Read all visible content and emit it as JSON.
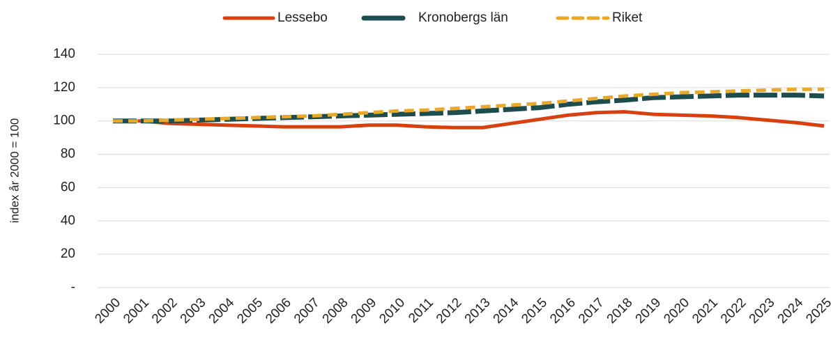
{
  "chart_data": {
    "type": "line",
    "y_label": "index år 2000 = 100",
    "categories": [
      "2000",
      "2001",
      "2002",
      "2003",
      "2004",
      "2005",
      "2006",
      "2007",
      "2008",
      "2009",
      "2010",
      "2011",
      "2012",
      "2013",
      "2014",
      "2015",
      "2016",
      "2017",
      "2018",
      "2019",
      "2020",
      "2021",
      "2022",
      "2023",
      "2024",
      "2025"
    ],
    "series": [
      {
        "name": "Lessebo",
        "color": "#d9400f",
        "dash": "",
        "width": 5,
        "values": [
          100,
          100,
          98.5,
          98,
          97.5,
          97,
          96.5,
          96.5,
          96.5,
          97.5,
          97.5,
          96.5,
          96,
          96,
          98.5,
          101,
          103.5,
          105,
          105.5,
          104,
          103.5,
          103,
          102,
          100.5,
          99,
          97
        ]
      },
      {
        "name": "Kronobergs län",
        "color": "#1e4d4f",
        "dash": "34,6",
        "width": 7,
        "values": [
          100,
          100,
          100,
          100.5,
          101,
          101.5,
          102,
          102.5,
          103,
          103.5,
          104,
          104.5,
          105,
          106,
          107,
          108,
          110,
          111.5,
          112.5,
          114,
          114.5,
          115,
          115.5,
          115.5,
          115.5,
          115
        ]
      },
      {
        "name": "Riket",
        "color": "#e8a92a",
        "dash": "14,8",
        "width": 5,
        "values": [
          100,
          100,
          100.5,
          101,
          101.5,
          102,
          102.5,
          103,
          104,
          105,
          106,
          106.5,
          107.5,
          108.5,
          109.5,
          110.5,
          112,
          113.5,
          115,
          116,
          117,
          117.5,
          118,
          118.5,
          119,
          119
        ]
      }
    ],
    "ylim": [
      0,
      140
    ],
    "yticks": [
      {
        "value": 0,
        "label": "-"
      },
      20,
      40,
      60,
      80,
      100,
      120,
      140
    ],
    "grid": true,
    "legend": "top"
  }
}
